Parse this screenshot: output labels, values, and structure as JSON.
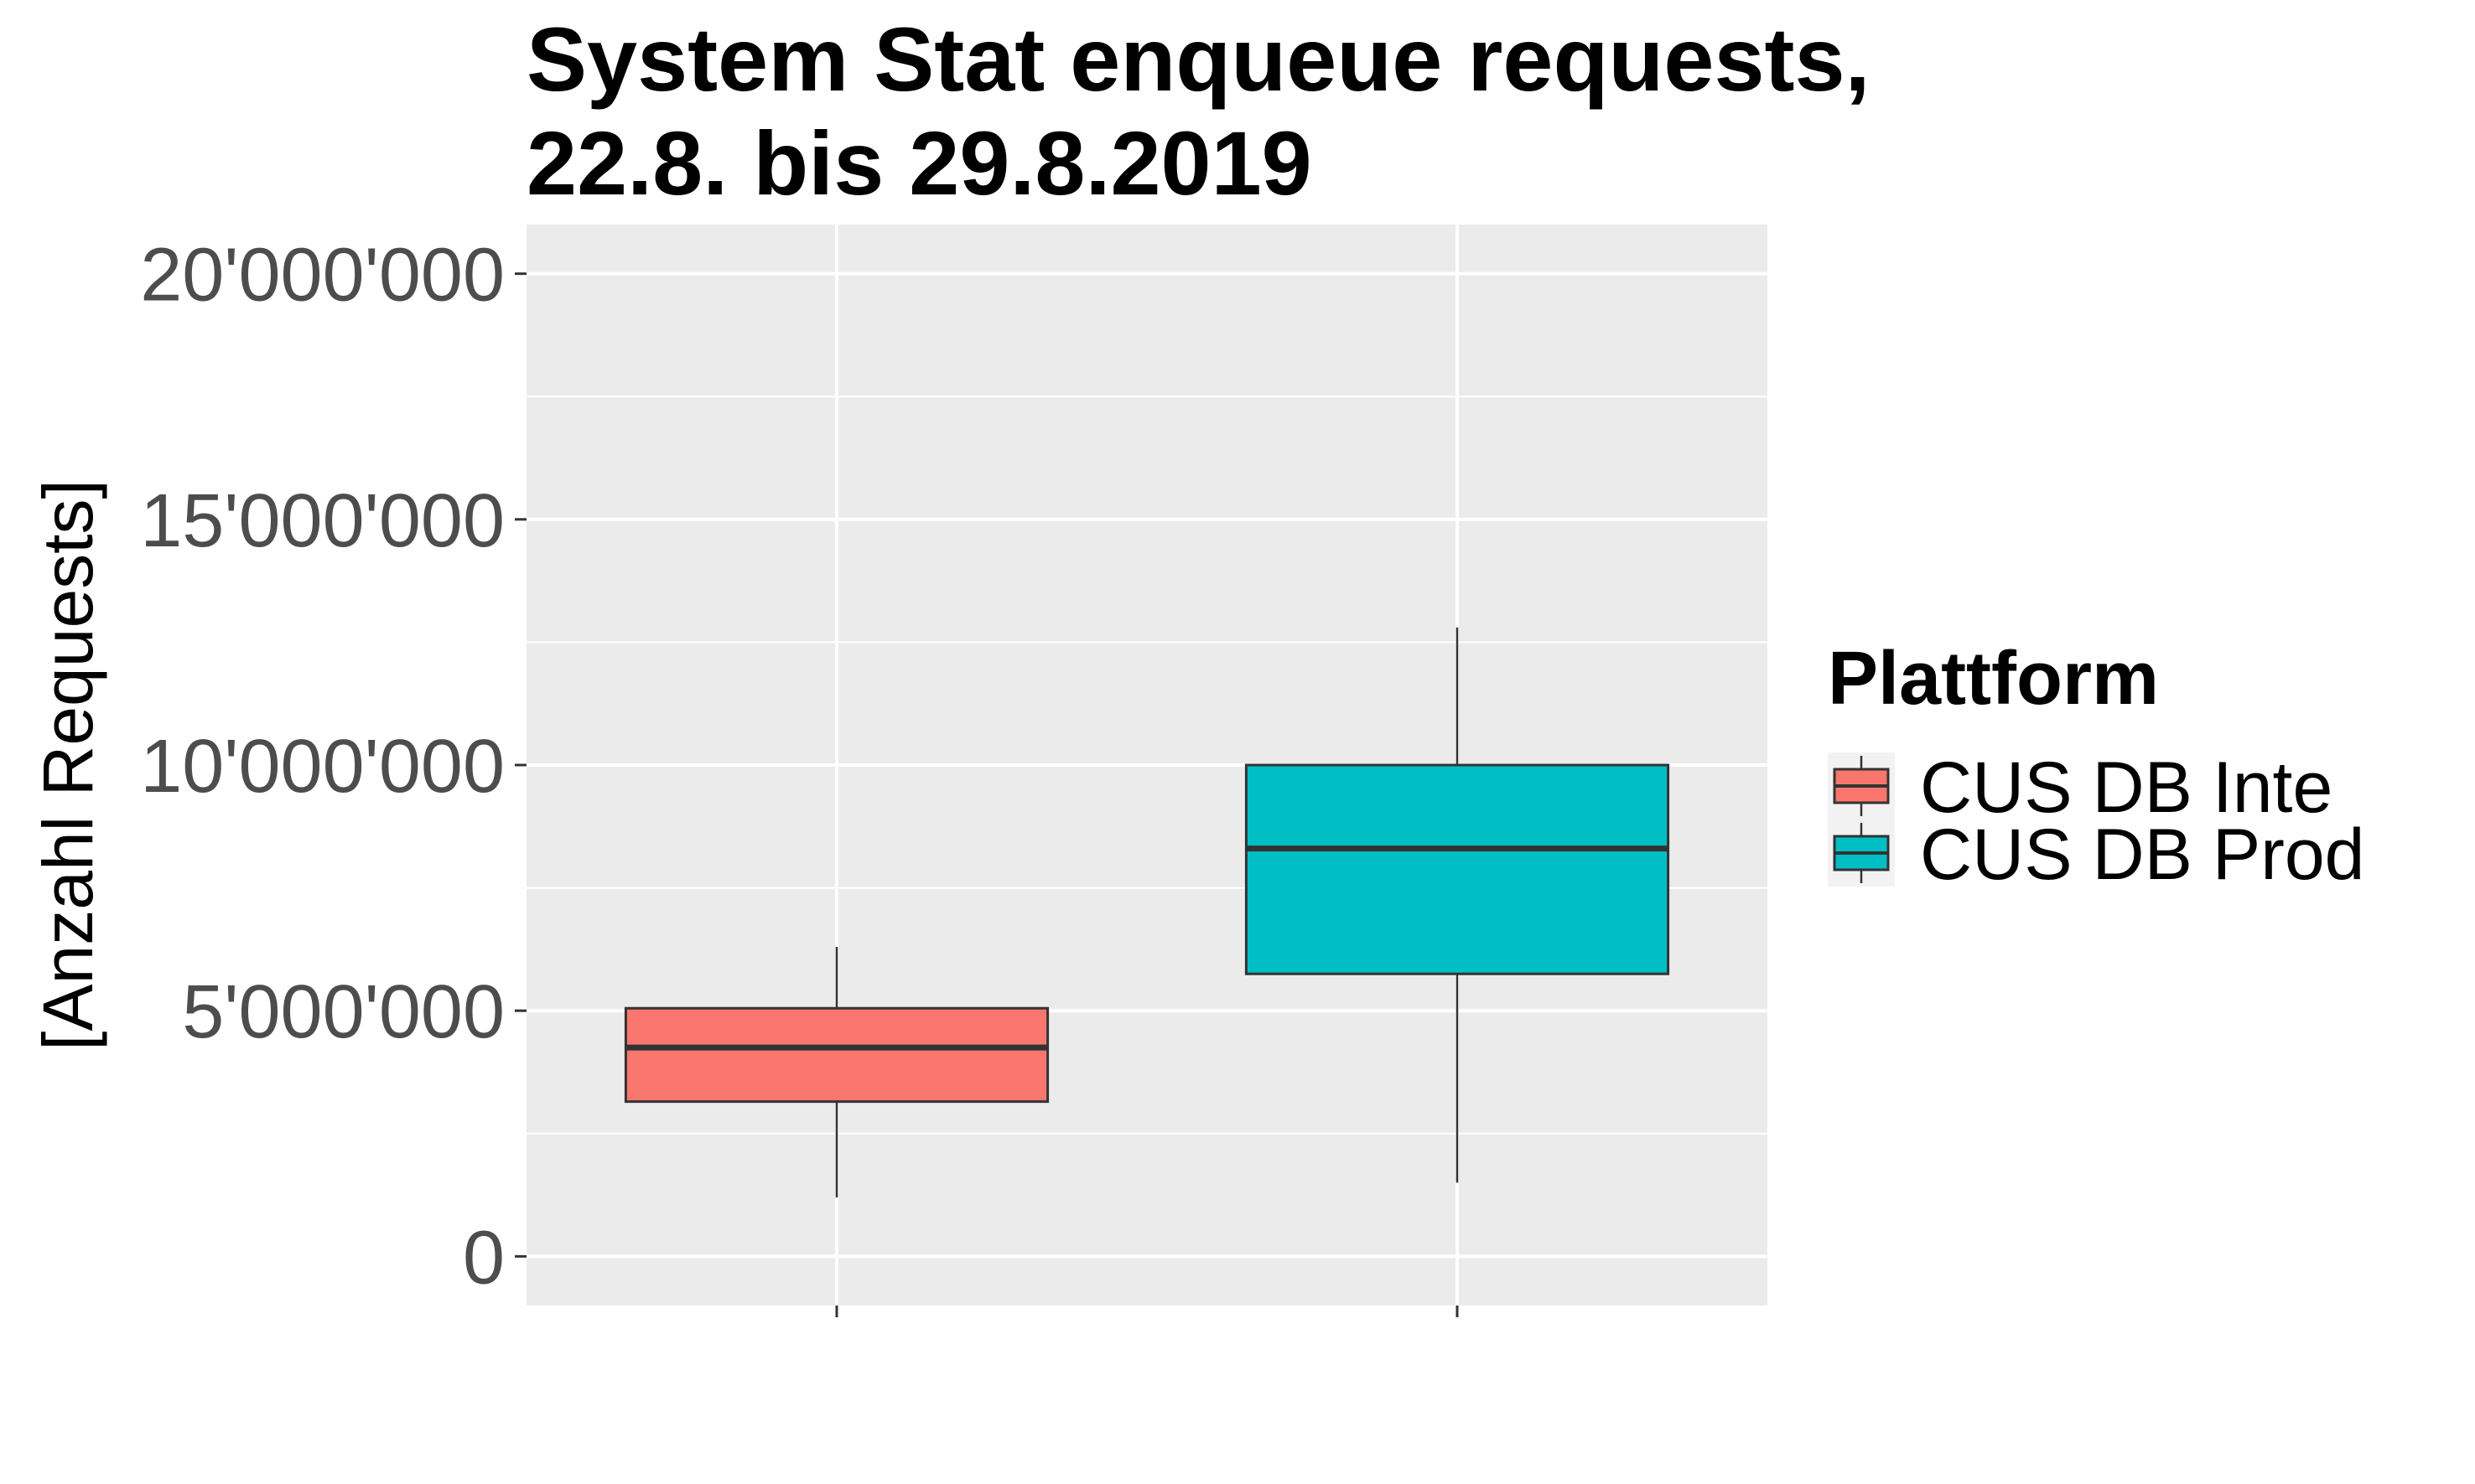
{
  "chart_data": {
    "type": "boxplot",
    "title_lines": [
      "System Stat enqueue requests,",
      "22.8. bis 29.8.2019"
    ],
    "xlabel": "",
    "ylabel": "[Anzahl Requests]",
    "ylim": [
      -1000000,
      21000000
    ],
    "yticks": [
      0,
      5000000,
      10000000,
      15000000,
      20000000
    ],
    "ytick_labels": [
      "0",
      "5'000'000",
      "10'000'000",
      "15'000'000",
      "20'000'000"
    ],
    "grid": true,
    "legend": {
      "title": "Plattform",
      "position": "right"
    },
    "series": [
      {
        "name": "CUS DB Inte",
        "color": "#F8766D",
        "whisker_low": 1200000,
        "q1": 3150000,
        "median": 4250000,
        "q3": 5050000,
        "whisker_high": 6300000
      },
      {
        "name": "CUS DB Prod",
        "color": "#00BFC4",
        "whisker_low": 1500000,
        "q1": 5750000,
        "median": 8300000,
        "q3": 10000000,
        "whisker_high": 12800000
      }
    ]
  }
}
